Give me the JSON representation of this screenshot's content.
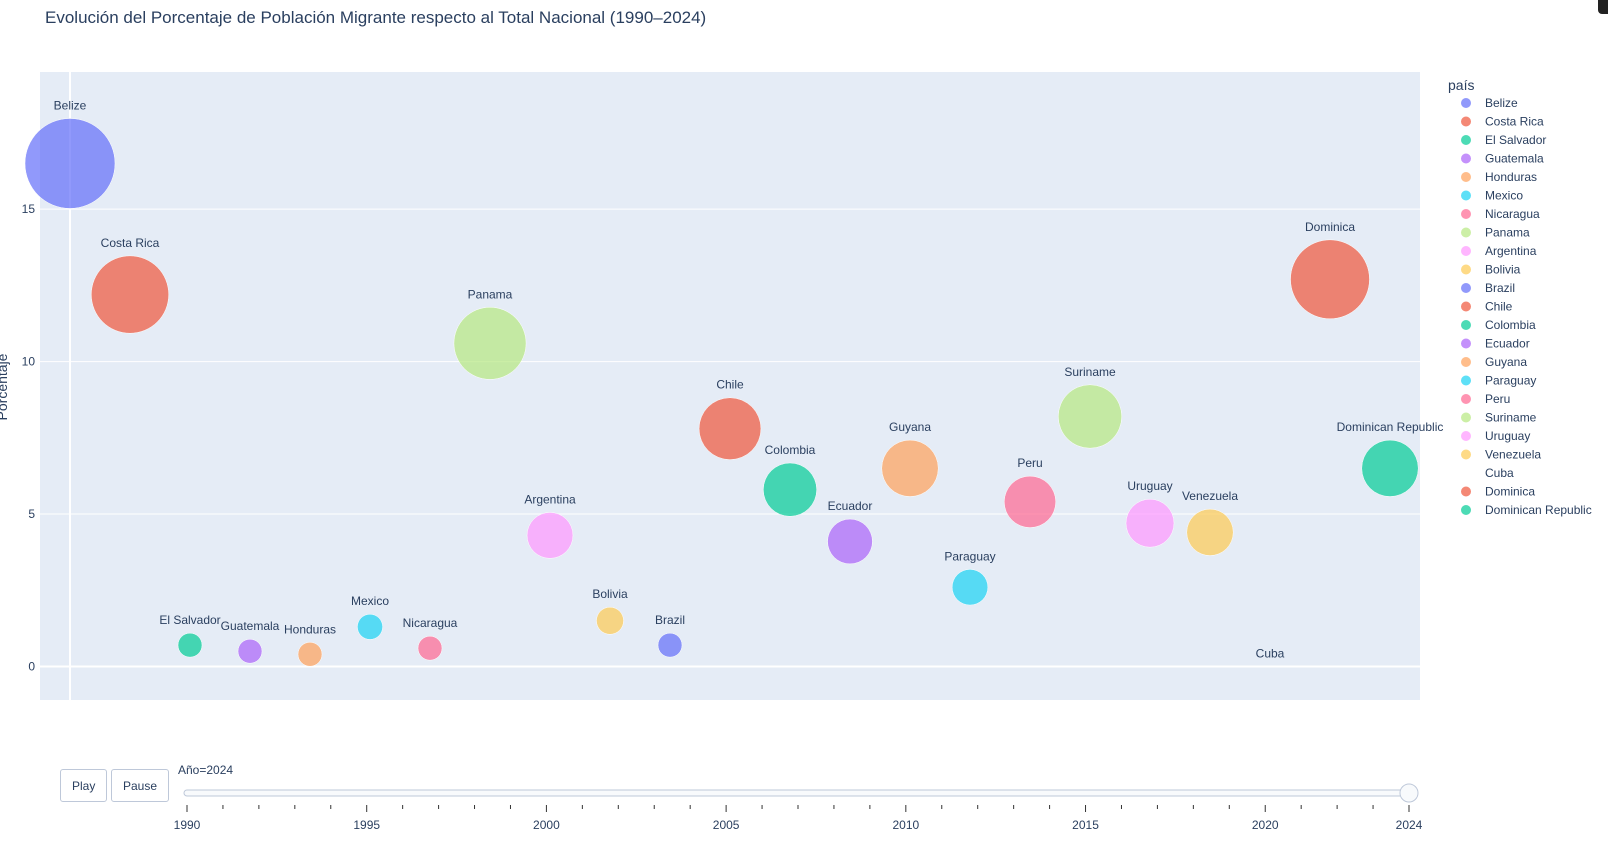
{
  "chart_data": {
    "type": "scatter",
    "title": "Evolución del Porcentaje de Población Migrante respecto al Total Nacional (1990–2024)",
    "ylabel": "Porcentaje",
    "ylim": [
      -1.1,
      19.5
    ],
    "yticks": [
      0,
      5,
      10,
      15
    ],
    "grid": true,
    "legend": {
      "title": "país",
      "placement": "right"
    },
    "points": [
      {
        "name": "Belize",
        "x": 0.5,
        "y": 16.5,
        "size": 16.5,
        "color": "#636efa"
      },
      {
        "name": "Costa Rica",
        "x": 1.5,
        "y": 12.2,
        "size": 12.2,
        "color": "#EF553B"
      },
      {
        "name": "El Salvador",
        "x": 2.5,
        "y": 0.7,
        "size": 0.7,
        "color": "#00cc96"
      },
      {
        "name": "Guatemala",
        "x": 3.5,
        "y": 0.5,
        "size": 0.5,
        "color": "#ab63fa"
      },
      {
        "name": "Honduras",
        "x": 4.5,
        "y": 0.4,
        "size": 0.4,
        "color": "#FFA15A"
      },
      {
        "name": "Mexico",
        "x": 5.5,
        "y": 1.3,
        "size": 1.3,
        "color": "#19d3f3"
      },
      {
        "name": "Nicaragua",
        "x": 6.5,
        "y": 0.6,
        "size": 0.6,
        "color": "#FF6692"
      },
      {
        "name": "Panama",
        "x": 7.5,
        "y": 10.6,
        "size": 10.6,
        "color": "#B6E880"
      },
      {
        "name": "Argentina",
        "x": 8.5,
        "y": 4.3,
        "size": 4.3,
        "color": "#FF97FF"
      },
      {
        "name": "Bolivia",
        "x": 9.5,
        "y": 1.5,
        "size": 1.5,
        "color": "#FECB52"
      },
      {
        "name": "Brazil",
        "x": 10.5,
        "y": 0.7,
        "size": 0.7,
        "color": "#636efa"
      },
      {
        "name": "Chile",
        "x": 11.5,
        "y": 7.8,
        "size": 7.8,
        "color": "#EF553B"
      },
      {
        "name": "Colombia",
        "x": 12.5,
        "y": 5.8,
        "size": 5.8,
        "color": "#00cc96"
      },
      {
        "name": "Ecuador",
        "x": 13.5,
        "y": 4.1,
        "size": 4.1,
        "color": "#ab63fa"
      },
      {
        "name": "Guyana",
        "x": 14.5,
        "y": 6.5,
        "size": 6.5,
        "color": "#FFA15A"
      },
      {
        "name": "Paraguay",
        "x": 15.5,
        "y": 2.6,
        "size": 2.6,
        "color": "#19d3f3"
      },
      {
        "name": "Peru",
        "x": 16.5,
        "y": 5.4,
        "size": 5.4,
        "color": "#FF6692"
      },
      {
        "name": "Suriname",
        "x": 17.5,
        "y": 8.2,
        "size": 8.2,
        "color": "#B6E880"
      },
      {
        "name": "Uruguay",
        "x": 18.5,
        "y": 4.7,
        "size": 4.7,
        "color": "#FF97FF"
      },
      {
        "name": "Venezuela",
        "x": 19.5,
        "y": 4.4,
        "size": 4.4,
        "color": "#FECB52"
      },
      {
        "name": "Cuba",
        "x": 20.5,
        "y": 0.0,
        "size": 0.0,
        "color": "#636efa"
      },
      {
        "name": "Dominica",
        "x": 21.5,
        "y": 12.7,
        "size": 12.7,
        "color": "#EF553B"
      },
      {
        "name": "Dominican Republic",
        "x": 22.5,
        "y": 6.5,
        "size": 6.5,
        "color": "#00cc96"
      }
    ],
    "legend_entries": [
      {
        "label": "Belize",
        "color": "#636efa",
        "marker": true
      },
      {
        "label": "Costa Rica",
        "color": "#EF553B",
        "marker": true
      },
      {
        "label": "El Salvador",
        "color": "#00cc96",
        "marker": true
      },
      {
        "label": "Guatemala",
        "color": "#ab63fa",
        "marker": true
      },
      {
        "label": "Honduras",
        "color": "#FFA15A",
        "marker": true
      },
      {
        "label": "Mexico",
        "color": "#19d3f3",
        "marker": true
      },
      {
        "label": "Nicaragua",
        "color": "#FF6692",
        "marker": true
      },
      {
        "label": "Panama",
        "color": "#B6E880",
        "marker": true
      },
      {
        "label": "Argentina",
        "color": "#FF97FF",
        "marker": true
      },
      {
        "label": "Bolivia",
        "color": "#FECB52",
        "marker": true
      },
      {
        "label": "Brazil",
        "color": "#636efa",
        "marker": true
      },
      {
        "label": "Chile",
        "color": "#EF553B",
        "marker": true
      },
      {
        "label": "Colombia",
        "color": "#00cc96",
        "marker": true
      },
      {
        "label": "Ecuador",
        "color": "#ab63fa",
        "marker": true
      },
      {
        "label": "Guyana",
        "color": "#FFA15A",
        "marker": true
      },
      {
        "label": "Paraguay",
        "color": "#19d3f3",
        "marker": true
      },
      {
        "label": "Peru",
        "color": "#FF6692",
        "marker": true
      },
      {
        "label": "Suriname",
        "color": "#B6E880",
        "marker": true
      },
      {
        "label": "Uruguay",
        "color": "#FF97FF",
        "marker": true
      },
      {
        "label": "Venezuela",
        "color": "#FECB52",
        "marker": true
      },
      {
        "label": "Cuba",
        "color": "#636efa",
        "marker": false
      },
      {
        "label": "Dominica",
        "color": "#EF553B",
        "marker": true
      },
      {
        "label": "Dominican Republic",
        "color": "#00cc96",
        "marker": true
      }
    ],
    "colors": {
      "plot_bg": "#e5ecf6",
      "grid": "#ffffff",
      "text": "#2a3f5f"
    }
  },
  "controls": {
    "play_label": "Play",
    "pause_label": "Pause"
  },
  "slider": {
    "current_label": "Año=2024",
    "min": 1990,
    "max": 2024,
    "value": 2024,
    "ticks": [
      "1990",
      "1995",
      "2000",
      "2005",
      "2010",
      "2015",
      "2020",
      "2024"
    ]
  }
}
